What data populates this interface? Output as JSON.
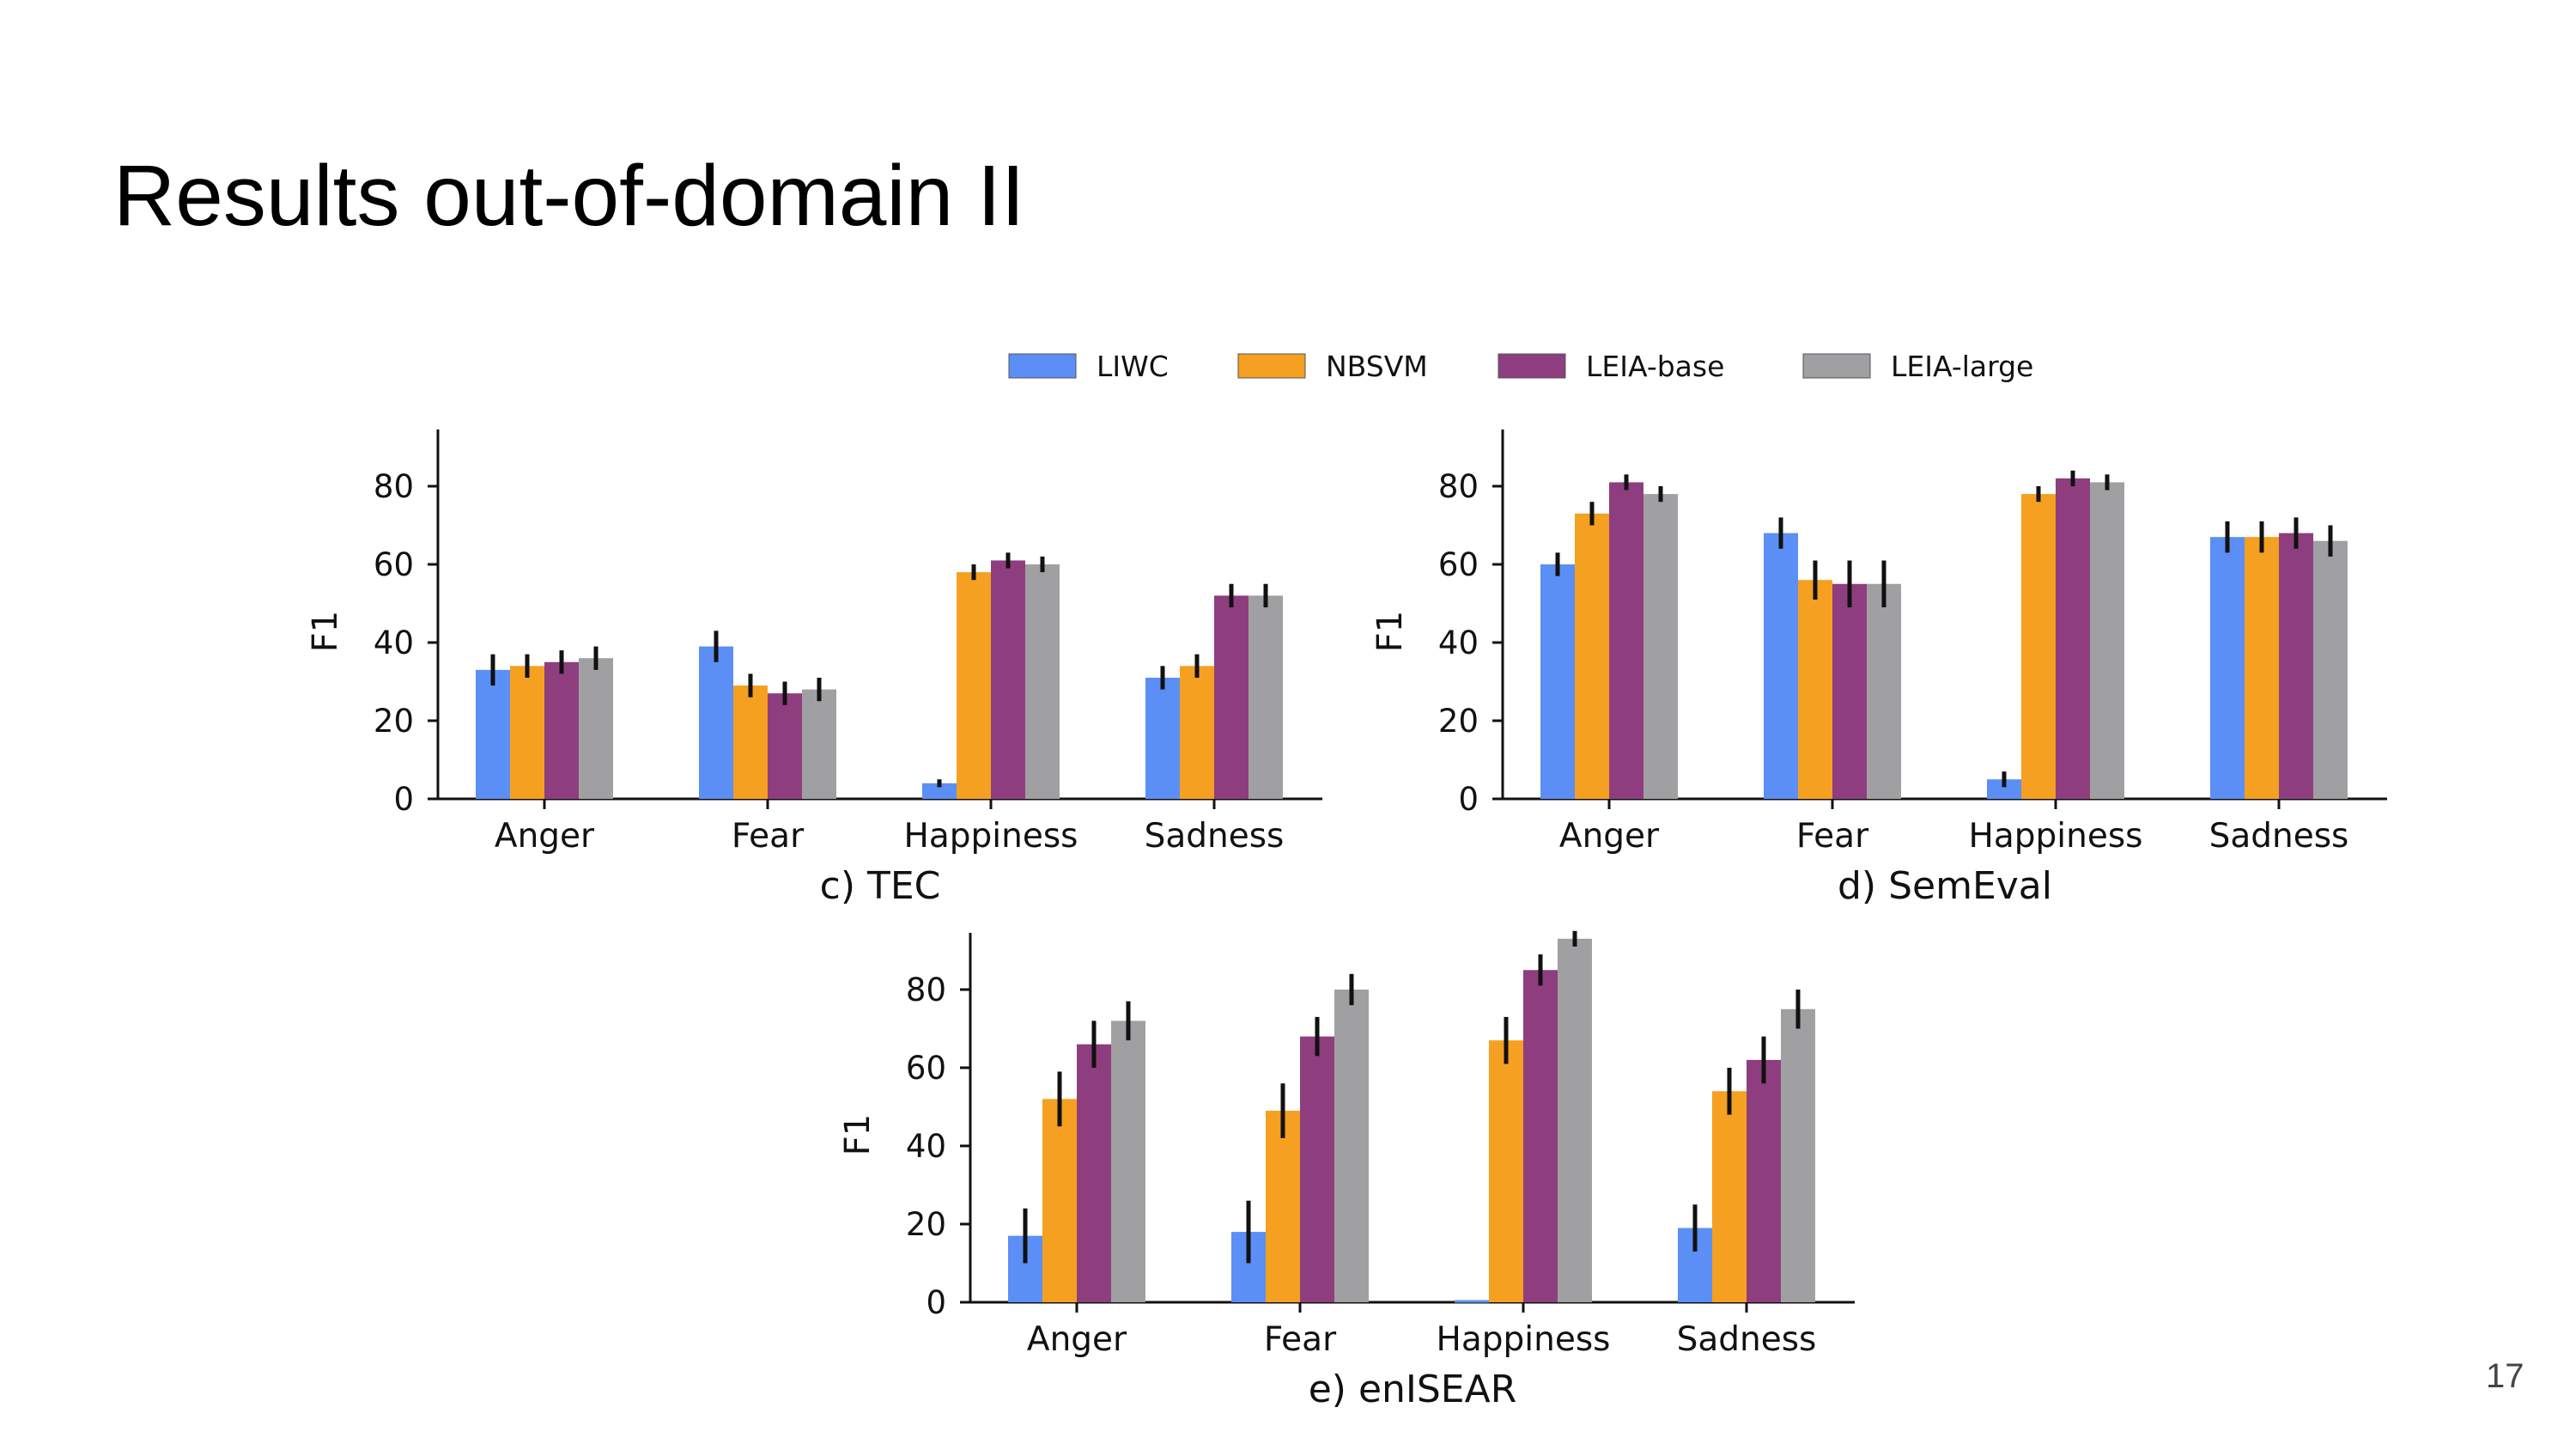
{
  "slide": {
    "title": "Results out-of-domain II",
    "page_number": "17"
  },
  "legend": {
    "items": [
      {
        "name": "LIWC",
        "color": "#5b8ff5"
      },
      {
        "name": "NBSVM",
        "color": "#f5a020"
      },
      {
        "name": "LEIA-base",
        "color": "#8e3e7e"
      },
      {
        "name": "LEIA-large",
        "color": "#a0a0a2"
      }
    ]
  },
  "chart_data": [
    {
      "type": "bar",
      "title": "c) TEC",
      "ylabel": "F1",
      "xlabel": "",
      "ylim": [
        0,
        95
      ],
      "yticks": [
        0,
        20,
        40,
        60,
        80
      ],
      "grid": false,
      "categories": [
        "Anger",
        "Fear",
        "Happiness",
        "Sadness"
      ],
      "series": [
        {
          "name": "LIWC",
          "values": [
            33,
            39,
            4,
            31
          ],
          "errors": [
            4,
            4,
            1,
            3
          ]
        },
        {
          "name": "NBSVM",
          "values": [
            34,
            29,
            58,
            34
          ],
          "errors": [
            3,
            3,
            2,
            3
          ]
        },
        {
          "name": "LEIA-base",
          "values": [
            35,
            27,
            61,
            52
          ],
          "errors": [
            3,
            3,
            2,
            3
          ]
        },
        {
          "name": "LEIA-large",
          "values": [
            36,
            28,
            60,
            52
          ],
          "errors": [
            3,
            3,
            2,
            3
          ]
        }
      ]
    },
    {
      "type": "bar",
      "title": "d) SemEval",
      "ylabel": "F1",
      "xlabel": "",
      "ylim": [
        0,
        95
      ],
      "yticks": [
        0,
        20,
        40,
        60,
        80
      ],
      "grid": false,
      "categories": [
        "Anger",
        "Fear",
        "Happiness",
        "Sadness"
      ],
      "series": [
        {
          "name": "LIWC",
          "values": [
            60,
            68,
            5,
            67
          ],
          "errors": [
            3,
            4,
            2,
            4
          ]
        },
        {
          "name": "NBSVM",
          "values": [
            73,
            56,
            78,
            67
          ],
          "errors": [
            3,
            5,
            2,
            4
          ]
        },
        {
          "name": "LEIA-base",
          "values": [
            81,
            55,
            82,
            68
          ],
          "errors": [
            2,
            6,
            2,
            4
          ]
        },
        {
          "name": "LEIA-large",
          "values": [
            78,
            55,
            81,
            66
          ],
          "errors": [
            2,
            6,
            2,
            4
          ]
        }
      ]
    },
    {
      "type": "bar",
      "title": "e) enISEAR",
      "ylabel": "F1",
      "xlabel": "",
      "ylim": [
        0,
        95
      ],
      "yticks": [
        0,
        20,
        40,
        60,
        80
      ],
      "grid": false,
      "categories": [
        "Anger",
        "Fear",
        "Happiness",
        "Sadness"
      ],
      "series": [
        {
          "name": "LIWC",
          "values": [
            17,
            18,
            0,
            19
          ],
          "errors": [
            7,
            8,
            0,
            6
          ]
        },
        {
          "name": "NBSVM",
          "values": [
            52,
            49,
            67,
            54
          ],
          "errors": [
            7,
            7,
            6,
            6
          ]
        },
        {
          "name": "LEIA-base",
          "values": [
            66,
            68,
            85,
            62
          ],
          "errors": [
            6,
            5,
            4,
            6
          ]
        },
        {
          "name": "LEIA-large",
          "values": [
            72,
            80,
            93,
            75
          ],
          "errors": [
            5,
            4,
            2,
            5
          ]
        }
      ]
    }
  ]
}
